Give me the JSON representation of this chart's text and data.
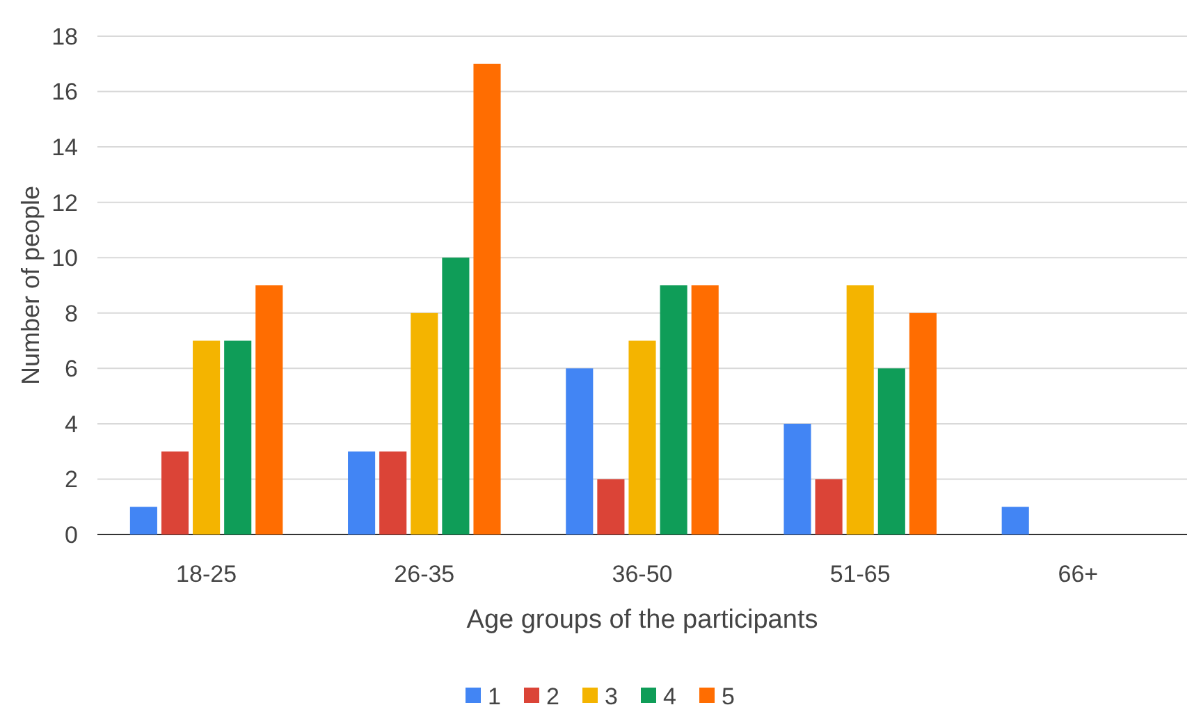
{
  "chart_data": {
    "type": "bar",
    "xlabel": "Age groups of the participants",
    "ylabel": "Number of people",
    "categories": [
      "18-25",
      "26-35",
      "36-50",
      "51-65",
      "66+"
    ],
    "series": [
      {
        "name": "1",
        "color": "#4285f4",
        "values": [
          1,
          3,
          6,
          4,
          1
        ]
      },
      {
        "name": "2",
        "color": "#db4437",
        "values": [
          3,
          3,
          2,
          2,
          0
        ]
      },
      {
        "name": "3",
        "color": "#f4b400",
        "values": [
          7,
          8,
          7,
          9,
          0
        ]
      },
      {
        "name": "4",
        "color": "#0f9d58",
        "values": [
          7,
          10,
          9,
          6,
          0
        ]
      },
      {
        "name": "5",
        "color": "#ff6d01",
        "values": [
          9,
          17,
          9,
          8,
          0
        ]
      }
    ],
    "ylim": [
      0,
      18
    ],
    "yticks": [
      0,
      2,
      4,
      6,
      8,
      10,
      12,
      14,
      16,
      18
    ],
    "grid": "y",
    "legend": "bottom"
  }
}
